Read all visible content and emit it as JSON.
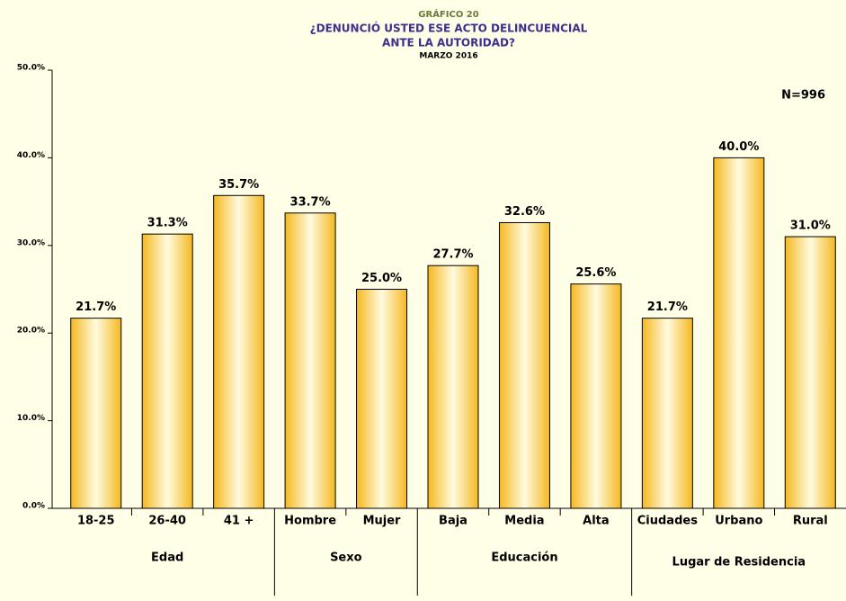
{
  "chart_data": {
    "type": "bar",
    "label": "GRÁFICO 20",
    "title": [
      "¿DENUNCIÓ USTED ESE ACTO DELINCUENCIAL",
      "ANTE LA AUTORIDAD?"
    ],
    "subtitle": "MARZO 2016",
    "annotation": "N=996",
    "categories": [
      "18-25",
      "26-40",
      "41 +",
      "Hombre",
      "Mujer",
      "Baja",
      "Media",
      "Alta",
      "Ciudades",
      "Urbano",
      "Rural"
    ],
    "groups": [
      "Edad",
      "Edad",
      "Edad",
      "Sexo",
      "Sexo",
      "Educación",
      "Educación",
      "Educación",
      "Lugar de Residencia",
      "Lugar de Residencia",
      "Lugar de Residencia"
    ],
    "values": [
      21.7,
      31.3,
      35.7,
      33.7,
      25.0,
      27.7,
      32.6,
      25.6,
      21.7,
      40.0,
      31.0
    ],
    "value_labels": [
      "21.7%",
      "31.3%",
      "35.7%",
      "33.7%",
      "25.0%",
      "27.7%",
      "32.6%",
      "25.6%",
      "21.7%",
      "40.0%",
      "31.0%"
    ],
    "color": "#f5c030",
    "ylim": [
      0,
      50
    ],
    "yticks": [
      {
        "value": 0,
        "label": "0.0%"
      },
      {
        "value": 10,
        "label": "10.0%"
      },
      {
        "value": 20,
        "label": "20.0%"
      },
      {
        "value": 30,
        "label": "30.0%"
      },
      {
        "value": 40,
        "label": "40.0%"
      },
      {
        "value": 50,
        "label": "50.0%"
      }
    ],
    "grid": false
  }
}
